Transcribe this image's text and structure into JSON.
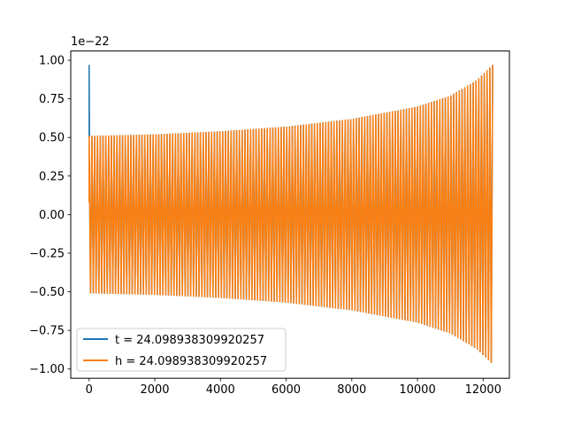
{
  "chart_data": {
    "type": "line",
    "title": "",
    "xlabel": "",
    "ylabel": "",
    "offset_label": "1e−22",
    "xlim": [
      -560,
      12800
    ],
    "ylim": [
      -1.06,
      1.06
    ],
    "xticks": [
      0,
      2000,
      4000,
      6000,
      8000,
      10000,
      12000
    ],
    "xtick_labels": [
      "0",
      "2000",
      "4000",
      "6000",
      "8000",
      "10000",
      "12000"
    ],
    "yticks": [
      -1.0,
      -0.75,
      -0.5,
      -0.25,
      0.0,
      0.25,
      0.5,
      0.75,
      1.0
    ],
    "ytick_labels": [
      "−1.00",
      "−0.75",
      "−0.50",
      "−0.25",
      "0.00",
      "0.25",
      "0.50",
      "0.75",
      "1.00"
    ],
    "grid": false,
    "legend_position": "lower-left",
    "series": [
      {
        "name": "t = 24.098938309920257",
        "color": "#1f77b4",
        "spike": {
          "x": 0,
          "y_max": 0.97,
          "y_min": 0.08
        },
        "envelope": [
          [
            0,
            0.51
          ],
          [
            2000,
            0.52
          ],
          [
            4000,
            0.54
          ],
          [
            6000,
            0.57
          ],
          [
            8000,
            0.62
          ],
          [
            10000,
            0.7
          ],
          [
            11000,
            0.77
          ],
          [
            11800,
            0.87
          ],
          [
            12290,
            0.97
          ]
        ]
      },
      {
        "name": "h = 24.098938309920257",
        "color": "#ff7f0e",
        "x_start": 0,
        "x_end": 12290,
        "cycles": 145,
        "envelope": [
          [
            0,
            0.51
          ],
          [
            2000,
            0.52
          ],
          [
            4000,
            0.54
          ],
          [
            6000,
            0.57
          ],
          [
            8000,
            0.62
          ],
          [
            10000,
            0.7
          ],
          [
            11000,
            0.77
          ],
          [
            11800,
            0.87
          ],
          [
            12290,
            0.97
          ]
        ]
      }
    ]
  }
}
